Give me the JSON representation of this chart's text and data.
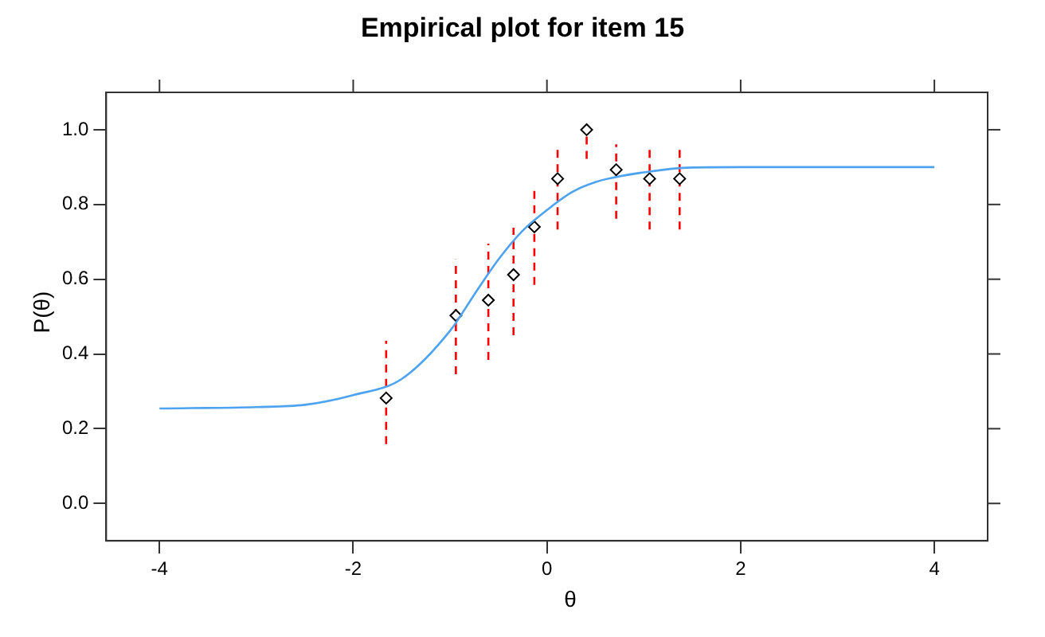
{
  "chart_data": {
    "type": "scatter",
    "title": "Empirical plot for item 15",
    "xlabel": "θ",
    "ylabel": "P(θ)",
    "xlim": [
      -4.55,
      4.55
    ],
    "ylim": [
      -0.1,
      1.1
    ],
    "xticks": [
      -4,
      -2,
      0,
      2,
      4
    ],
    "yticks": [
      {
        "value": 0,
        "label": "0.0"
      },
      {
        "value": 0.2,
        "label": "0.2"
      },
      {
        "value": 0.4,
        "label": "0.4"
      },
      {
        "value": 0.6,
        "label": "0.6"
      },
      {
        "value": 0.8,
        "label": "0.8"
      },
      {
        "value": 1,
        "label": "1.0"
      }
    ],
    "grid": false,
    "legend": false,
    "series": [
      {
        "type": "line",
        "color": "#4da3f0",
        "marker": "none",
        "line_style": "solid",
        "x": [
          -4,
          -3,
          -2.5,
          -2,
          -1.5,
          -1,
          -0.75,
          -0.5,
          -0.25,
          0,
          0.25,
          0.5,
          1,
          1.5,
          2,
          3,
          4
        ],
        "values": [
          0.254,
          0.258,
          0.264,
          0.29,
          0.333,
          0.462,
          0.559,
          0.653,
          0.73,
          0.785,
          0.832,
          0.86,
          0.886,
          0.899,
          0.9,
          0.9,
          0.9
        ]
      },
      {
        "type": "scatter",
        "color": "#000000",
        "marker": "diamond",
        "x": [
          -1.66,
          -0.94,
          -0.605,
          -0.345,
          -0.13,
          0.11,
          0.41,
          0.715,
          1.06,
          1.37
        ],
        "values": [
          0.282,
          0.503,
          0.544,
          0.612,
          0.74,
          0.869,
          1.0,
          0.893,
          0.869,
          0.869
        ],
        "errors": [
          [
            0.159,
            0.435
          ],
          [
            0.346,
            0.653
          ],
          [
            0.384,
            0.695
          ],
          [
            0.45,
            0.738
          ],
          [
            0.585,
            0.847
          ],
          [
            0.733,
            0.953
          ],
          [
            0.922,
            1.0
          ],
          [
            0.762,
            0.961
          ],
          [
            0.733,
            0.953
          ],
          [
            0.733,
            0.953
          ]
        ]
      }
    ]
  }
}
